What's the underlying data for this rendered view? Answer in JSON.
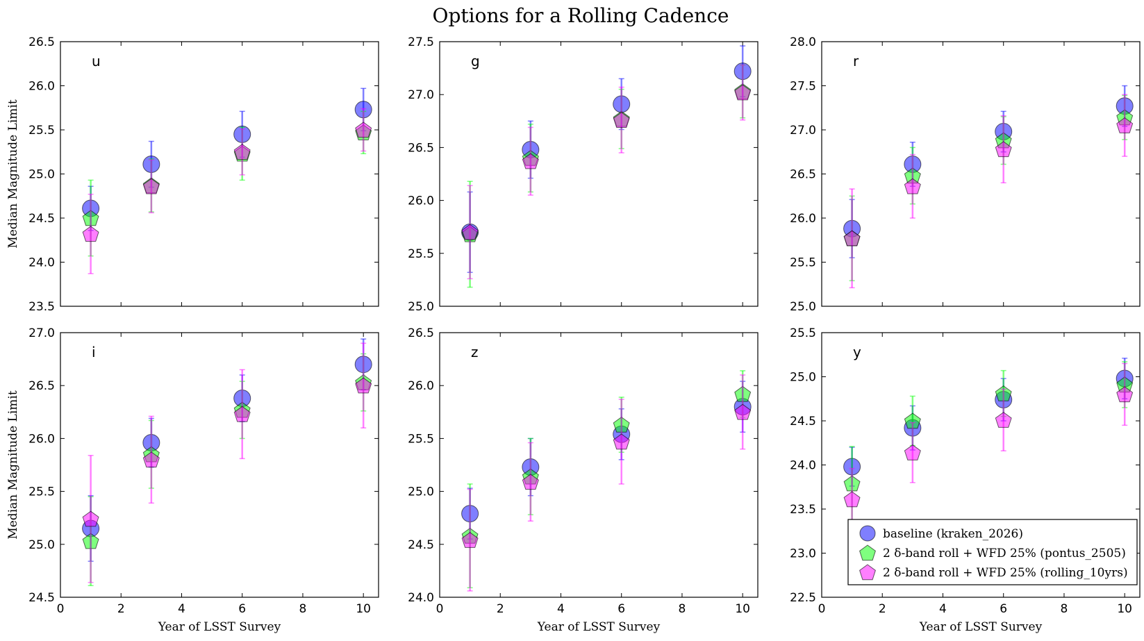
{
  "chart_data": {
    "type": "scatter",
    "title": "Options for a Rolling Cadence",
    "xlabel": "Year of LSST Survey",
    "ylabel": "Median Magnitude Limit",
    "x": [
      1,
      3,
      6,
      10
    ],
    "xlim": [
      0,
      10.5
    ],
    "xticks": [
      "0",
      "2",
      "4",
      "6",
      "8",
      "10"
    ],
    "grid": false,
    "legend_position": "bottom-right of panel y",
    "legend": [
      {
        "label": "baseline (kraken_2026)",
        "color": "#0000ff",
        "marker": "circle"
      },
      {
        "label": "2 δ-band roll + WFD 25% (pontus_2505)",
        "color": "#00ff00",
        "marker": "pentagon"
      },
      {
        "label": "2 δ-band roll + WFD 25% (rolling_10yrs)",
        "color": "#ff00ff",
        "marker": "pentagon"
      }
    ],
    "panels": [
      {
        "band": "u",
        "ylim": [
          23.5,
          26.5
        ],
        "yticks": [
          "23.5",
          "24.0",
          "24.5",
          "25.0",
          "25.5",
          "26.0",
          "26.5"
        ],
        "series": [
          {
            "name": "baseline (kraken_2026)",
            "values": [
              24.61,
              25.11,
              25.45,
              25.73
            ],
            "err": [
              0.25,
              0.26,
              0.26,
              0.24
            ]
          },
          {
            "name": "2 δ-band roll + WFD 25% (pontus_2505)",
            "values": [
              24.5,
              24.87,
              25.23,
              25.47
            ],
            "err": [
              0.43,
              0.3,
              0.3,
              0.24
            ]
          },
          {
            "name": "2 δ-band roll + WFD 25% (rolling_10yrs)",
            "values": [
              24.32,
              24.86,
              25.25,
              25.5
            ],
            "err": [
              0.45,
              0.3,
              0.26,
              0.24
            ]
          }
        ]
      },
      {
        "band": "g",
        "ylim": [
          25.0,
          27.5
        ],
        "yticks": [
          "25.0",
          "25.5",
          "26.0",
          "26.5",
          "27.0",
          "27.5"
        ],
        "series": [
          {
            "name": "baseline (kraken_2026)",
            "values": [
              25.7,
              26.48,
              26.91,
              27.22
            ],
            "err": [
              0.38,
              0.27,
              0.24,
              0.24
            ]
          },
          {
            "name": "2 δ-band roll + WFD 25% (pontus_2505)",
            "values": [
              25.68,
              26.4,
              26.77,
              27.03
            ],
            "err": [
              0.5,
              0.32,
              0.28,
              0.25
            ]
          },
          {
            "name": "2 δ-band roll + WFD 25% (rolling_10yrs)",
            "values": [
              25.7,
              26.37,
              26.76,
              27.02
            ],
            "err": [
              0.44,
              0.32,
              0.31,
              0.26
            ]
          }
        ]
      },
      {
        "band": "r",
        "ylim": [
          25.0,
          28.0
        ],
        "yticks": [
          "25.0",
          "25.5",
          "26.0",
          "26.5",
          "27.0",
          "27.5",
          "28.0"
        ],
        "series": [
          {
            "name": "baseline (kraken_2026)",
            "values": [
              25.88,
              26.61,
              26.98,
              27.27
            ],
            "err": [
              0.33,
              0.25,
              0.23,
              0.23
            ]
          },
          {
            "name": "2 δ-band roll + WFD 25% (pontus_2505)",
            "values": [
              25.77,
              26.48,
              26.88,
              27.14
            ],
            "err": [
              0.48,
              0.32,
              0.27,
              0.25
            ]
          },
          {
            "name": "2 δ-band roll + WFD 25% (rolling_10yrs)",
            "values": [
              25.77,
              26.36,
              26.78,
              27.05
            ],
            "err": [
              0.56,
              0.36,
              0.38,
              0.35
            ]
          }
        ]
      },
      {
        "band": "i",
        "ylim": [
          24.5,
          27.0
        ],
        "yticks": [
          "24.5",
          "25.0",
          "25.5",
          "26.0",
          "26.5",
          "27.0"
        ],
        "series": [
          {
            "name": "baseline (kraken_2026)",
            "values": [
              25.15,
              25.96,
              26.38,
              26.7
            ],
            "err": [
              0.31,
              0.23,
              0.22,
              0.24
            ]
          },
          {
            "name": "2 δ-band roll + WFD 25% (pontus_2505)",
            "values": [
              25.03,
              25.85,
              26.27,
              26.53
            ],
            "err": [
              0.42,
              0.32,
              0.27,
              0.27
            ]
          },
          {
            "name": "2 δ-band roll + WFD 25% (rolling_10yrs)",
            "values": [
              25.24,
              25.8,
              26.23,
              26.5
            ],
            "err": [
              0.6,
              0.41,
              0.42,
              0.4
            ]
          }
        ]
      },
      {
        "band": "z",
        "ylim": [
          24.0,
          26.5
        ],
        "yticks": [
          "24.0",
          "24.5",
          "25.0",
          "25.5",
          "26.0",
          "26.5"
        ],
        "series": [
          {
            "name": "baseline (kraken_2026)",
            "values": [
              24.79,
              25.23,
              25.54,
              25.8
            ],
            "err": [
              0.24,
              0.27,
              0.24,
              0.24
            ]
          },
          {
            "name": "2 δ-band roll + WFD 25% (pontus_2505)",
            "values": [
              24.58,
              25.14,
              25.63,
              25.92
            ],
            "err": [
              0.49,
              0.36,
              0.26,
              0.22
            ]
          },
          {
            "name": "2 δ-band roll + WFD 25% (rolling_10yrs)",
            "values": [
              24.54,
              25.09,
              25.47,
              25.75
            ],
            "err": [
              0.48,
              0.37,
              0.4,
              0.35
            ]
          }
        ]
      },
      {
        "band": "y",
        "ylim": [
          22.5,
          25.5
        ],
        "yticks": [
          "22.5",
          "23.0",
          "23.5",
          "24.0",
          "24.5",
          "25.0",
          "25.5"
        ],
        "series": [
          {
            "name": "baseline (kraken_2026)",
            "values": [
              23.98,
              24.42,
              24.74,
              24.98
            ],
            "err": [
              0.22,
              0.25,
              0.24,
              0.23
            ]
          },
          {
            "name": "2 δ-band roll + WFD 25% (pontus_2505)",
            "values": [
              23.79,
              24.5,
              24.81,
              24.91
            ],
            "err": [
              0.42,
              0.28,
              0.26,
              0.26
            ]
          },
          {
            "name": "2 δ-band roll + WFD 25% (rolling_10yrs)",
            "values": [
              23.61,
              24.14,
              24.51,
              24.8
            ],
            "err": [
              0.35,
              0.34,
              0.35,
              0.35
            ]
          }
        ]
      }
    ]
  },
  "style": {
    "series_colors": [
      "#0000ff",
      "#00ff00",
      "#ff00ff"
    ],
    "marker_opacity": 0.5
  }
}
